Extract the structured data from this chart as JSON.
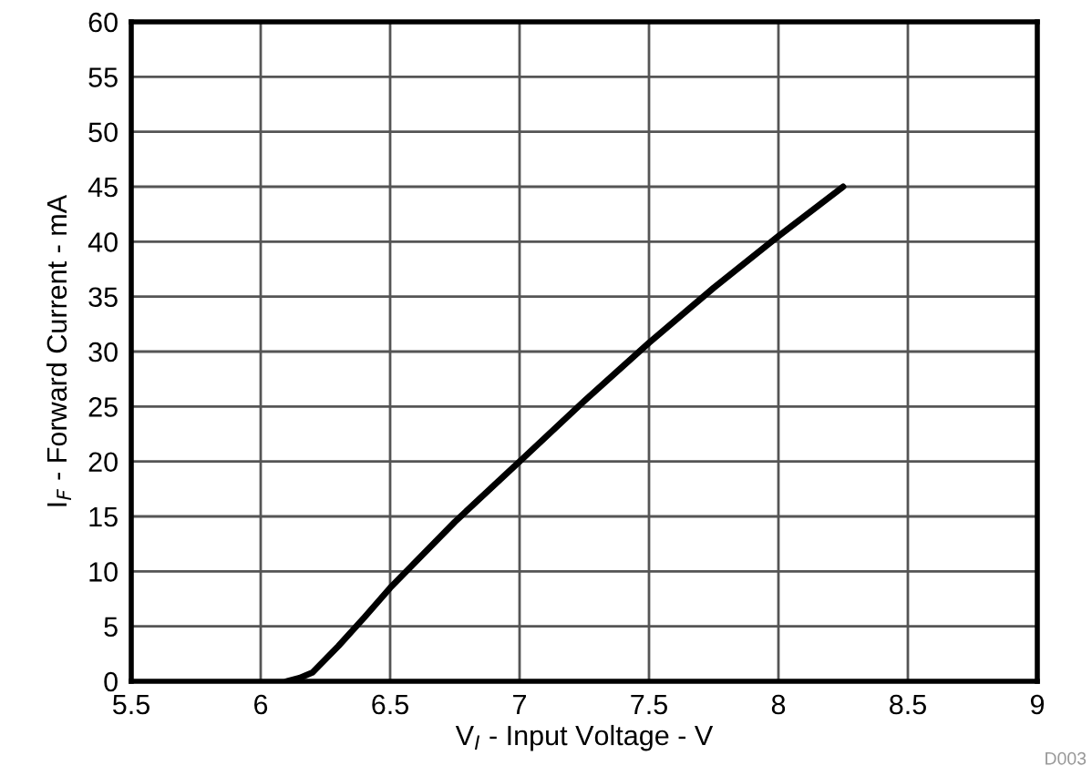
{
  "chart_data": {
    "type": "line",
    "xlabel": "V$_{I}$ - Input Voltage - V",
    "ylabel": "I$_{F}$ - Forward Current - mA",
    "series": [
      {
        "color": "#000000",
        "x": [
          6.1,
          6.15,
          6.2,
          6.25,
          6.3,
          6.4,
          6.5,
          6.75,
          7,
          7.25,
          7.5,
          7.75,
          8,
          8.25
        ],
        "values": [
          0,
          0.3,
          0.8,
          2,
          3.2,
          5.8,
          8.5,
          14.5,
          20,
          25.5,
          30.8,
          35.8,
          40.5,
          45
        ]
      }
    ],
    "xlim": [
      5.5,
      9
    ],
    "xticks": [
      5.5,
      6,
      6.5,
      7,
      7.5,
      8,
      8.5,
      9
    ],
    "ylim": [
      0,
      60
    ],
    "yticks": [
      0,
      5,
      10,
      15,
      20,
      25,
      30,
      35,
      40,
      45,
      50,
      55,
      60
    ],
    "grid": true,
    "line_style": "solid",
    "annotations": [
      "D003"
    ]
  }
}
